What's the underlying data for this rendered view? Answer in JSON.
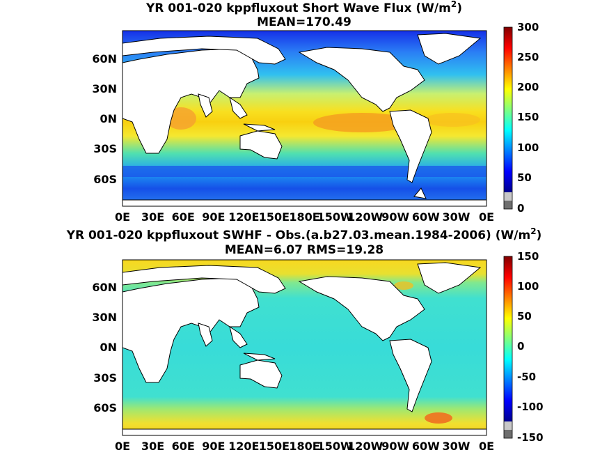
{
  "panels": [
    {
      "title": "YR 001-020 kppfluxout  Short Wave Flux (W/m",
      "title_sup": "2",
      "title_tail": ")",
      "subtitle": "MEAN=170.49",
      "colorbar_ticks": [
        "300",
        "250",
        "200",
        "150",
        "100",
        "50",
        "0"
      ],
      "colorbar_range": [
        0,
        300
      ],
      "colorscale": "jet"
    },
    {
      "title": "YR 001-020 kppfluxout SWHF - Obs.(a.b27.03.mean.1984-2006) (W/m",
      "title_sup": "2",
      "title_tail": ")",
      "subtitle": "MEAN=6.07 RMS=19.28",
      "colorbar_ticks": [
        "150",
        "100",
        "50",
        "0",
        "-50",
        "-100",
        "-150"
      ],
      "colorbar_range": [
        -150,
        150
      ],
      "colorscale": "jet"
    }
  ],
  "lat_ticks": [
    "60N",
    "30N",
    "0N",
    "30S",
    "60S"
  ],
  "lon_ticks": [
    "0E",
    "30E",
    "60E",
    "90E",
    "120E",
    "150E",
    "180E",
    "150W",
    "120W",
    "90W",
    "60W",
    "30W",
    "0E"
  ],
  "colors": {
    "land": "#ffffff",
    "coast": "#000000"
  }
}
